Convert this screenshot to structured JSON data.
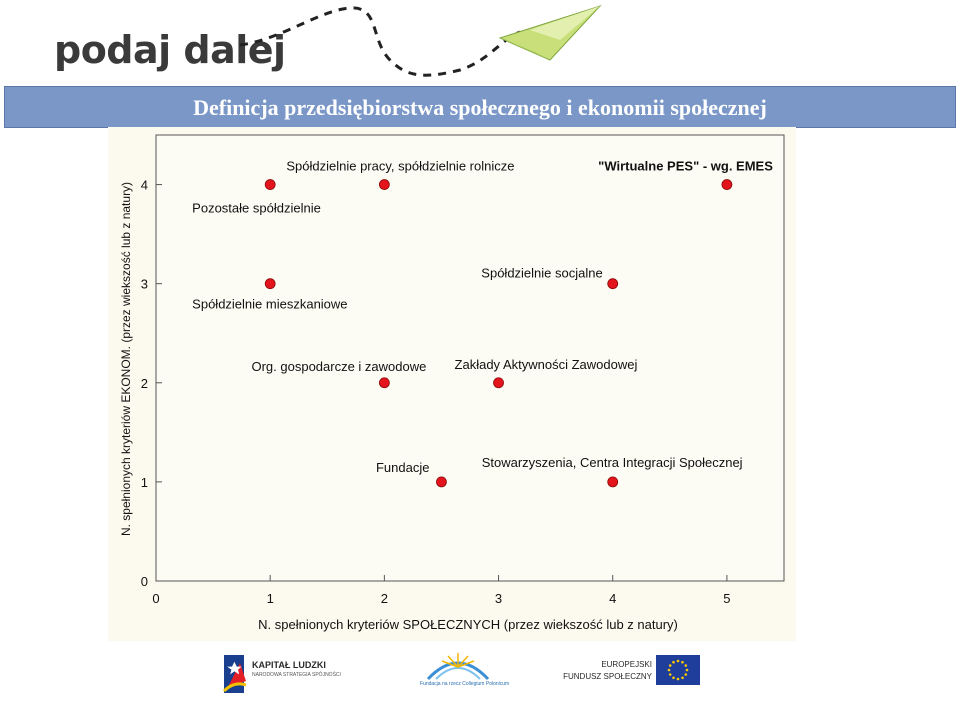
{
  "header": {
    "logo_text": "podaj dalej",
    "title": "Definicja przedsiębiorstwa społecznego i ekonomii społecznej"
  },
  "colors": {
    "banner": "#7a97c8",
    "point": "#e3141b",
    "plot_bg": "#fcfaee",
    "plane": "#bcd86a"
  },
  "chart_data": {
    "type": "scatter",
    "xlabel": "N. spełnionych kryteriów SPOŁECZNYCH (przez wiekszość lub z natury)",
    "ylabel": "N. spełnionych kryteriów EKONOM. (przez wiekszość lub z natury)",
    "xlim": [
      0,
      5.5
    ],
    "ylim": [
      0,
      4.5
    ],
    "xticks": [
      "0",
      "1",
      "2",
      "3",
      "4",
      "5"
    ],
    "yticks": [
      "0",
      "1",
      "2",
      "3",
      "4"
    ],
    "grid": false,
    "points": [
      {
        "x": 1,
        "y": 4,
        "label": "Pozostałe spółdzielnie"
      },
      {
        "x": 2,
        "y": 4,
        "label": "Spółdzielnie pracy, spółdzielnie rolnicze"
      },
      {
        "x": 5,
        "y": 4,
        "label": "\"Wirtualne PES\" - wg. EMES"
      },
      {
        "x": 1,
        "y": 3,
        "label": "Spółdzielnie mieszkaniowe"
      },
      {
        "x": 4,
        "y": 3,
        "label": "Spółdzielnie socjalne"
      },
      {
        "x": 2,
        "y": 2,
        "label": "Org. gospodarcze i zawodowe"
      },
      {
        "x": 3,
        "y": 2,
        "label": "Zakłady Aktywności Zawodowej"
      },
      {
        "x": 2.5,
        "y": 1,
        "label": "Fundacje"
      },
      {
        "x": 4,
        "y": 1,
        "label": "Stowarzyszenia, Centra Integracji Społecznej"
      }
    ]
  },
  "footer": {
    "kapital_title": "KAPITAŁ LUDZKI",
    "kapital_sub": "NARODOWA STRATEGIA SPÓJNOŚCI",
    "fundacja_sub": "Fundacja na rzecz Collegium Polonicum",
    "eu_line1": "EUROPEJSKI",
    "eu_line2": "FUNDUSZ SPOŁECZNY"
  }
}
